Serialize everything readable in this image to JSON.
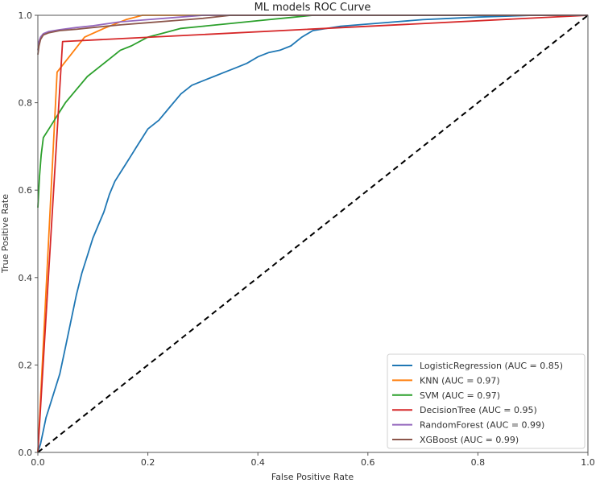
{
  "chart_data": {
    "type": "line",
    "title": "ML models ROC Curve",
    "xlabel": "False Positive Rate",
    "ylabel": "True Positive Rate",
    "xlim": [
      0.0,
      1.0
    ],
    "ylim": [
      0.0,
      1.0
    ],
    "xticks": [
      "0.0",
      "0.2",
      "0.4",
      "0.6",
      "0.8",
      "1.0"
    ],
    "yticks": [
      "0.0",
      "0.2",
      "0.4",
      "0.6",
      "0.8",
      "1.0"
    ],
    "grid": false,
    "legend_position": "lower-right",
    "baseline": {
      "name": "chance",
      "color": "#000000",
      "style": "dashed",
      "x": [
        0,
        1
      ],
      "y": [
        0,
        1
      ]
    },
    "series": [
      {
        "name": "LogisticRegression (AUC = 0.85)",
        "color": "#1f77b4",
        "x": [
          0,
          0.005,
          0.01,
          0.015,
          0.02,
          0.03,
          0.04,
          0.05,
          0.06,
          0.07,
          0.08,
          0.09,
          0.1,
          0.11,
          0.12,
          0.13,
          0.14,
          0.15,
          0.16,
          0.17,
          0.18,
          0.19,
          0.2,
          0.22,
          0.24,
          0.26,
          0.28,
          0.3,
          0.32,
          0.34,
          0.36,
          0.38,
          0.4,
          0.42,
          0.44,
          0.46,
          0.48,
          0.5,
          0.55,
          0.6,
          0.65,
          0.7,
          0.75,
          0.8,
          0.85,
          0.9,
          1.0
        ],
        "y": [
          0,
          0.02,
          0.05,
          0.08,
          0.1,
          0.14,
          0.18,
          0.24,
          0.3,
          0.36,
          0.41,
          0.45,
          0.49,
          0.52,
          0.55,
          0.59,
          0.62,
          0.64,
          0.66,
          0.68,
          0.7,
          0.72,
          0.74,
          0.76,
          0.79,
          0.82,
          0.84,
          0.85,
          0.86,
          0.87,
          0.88,
          0.89,
          0.905,
          0.915,
          0.92,
          0.93,
          0.95,
          0.965,
          0.975,
          0.98,
          0.985,
          0.99,
          0.993,
          0.996,
          0.998,
          1.0,
          1.0
        ]
      },
      {
        "name": "KNN (AUC = 0.97)",
        "color": "#ff7f0e",
        "x": [
          0,
          0.035,
          0.06,
          0.085,
          0.12,
          0.16,
          0.19,
          1.0
        ],
        "y": [
          0,
          0.87,
          0.91,
          0.95,
          0.97,
          0.99,
          1.0,
          1.0
        ]
      },
      {
        "name": "SVM (AUC = 0.97)",
        "color": "#2ca02c",
        "x": [
          0,
          0.003,
          0.006,
          0.01,
          0.02,
          0.03,
          0.04,
          0.05,
          0.07,
          0.09,
          0.11,
          0.13,
          0.15,
          0.17,
          0.2,
          0.23,
          0.26,
          0.3,
          0.34,
          0.38,
          0.42,
          0.46,
          0.5,
          1.0
        ],
        "y": [
          0.56,
          0.63,
          0.68,
          0.72,
          0.74,
          0.76,
          0.78,
          0.8,
          0.83,
          0.86,
          0.88,
          0.9,
          0.92,
          0.93,
          0.95,
          0.96,
          0.97,
          0.975,
          0.98,
          0.985,
          0.99,
          0.995,
          1.0,
          1.0
        ]
      },
      {
        "name": "DecisionTree (AUC = 0.95)",
        "color": "#d62728",
        "x": [
          0,
          0.045,
          1.0
        ],
        "y": [
          0,
          0.94,
          1.0
        ]
      },
      {
        "name": "RandomForest (AUC = 0.99)",
        "color": "#9467bd",
        "x": [
          0,
          0.002,
          0.005,
          0.01,
          0.02,
          0.04,
          0.07,
          0.1,
          0.15,
          0.2,
          0.25,
          0.3,
          0.4,
          1.0
        ],
        "y": [
          0.92,
          0.94,
          0.95,
          0.958,
          0.963,
          0.967,
          0.972,
          0.976,
          0.985,
          0.99,
          0.995,
          1.0,
          1.0,
          1.0
        ]
      },
      {
        "name": "XGBoost (AUC = 0.99)",
        "color": "#8c564b",
        "x": [
          0,
          0.002,
          0.005,
          0.01,
          0.02,
          0.04,
          0.07,
          0.1,
          0.15,
          0.2,
          0.25,
          0.3,
          0.35,
          0.4,
          1.0
        ],
        "y": [
          0.91,
          0.93,
          0.945,
          0.955,
          0.96,
          0.965,
          0.968,
          0.972,
          0.978,
          0.983,
          0.988,
          0.993,
          1.0,
          1.0,
          1.0
        ]
      }
    ]
  }
}
